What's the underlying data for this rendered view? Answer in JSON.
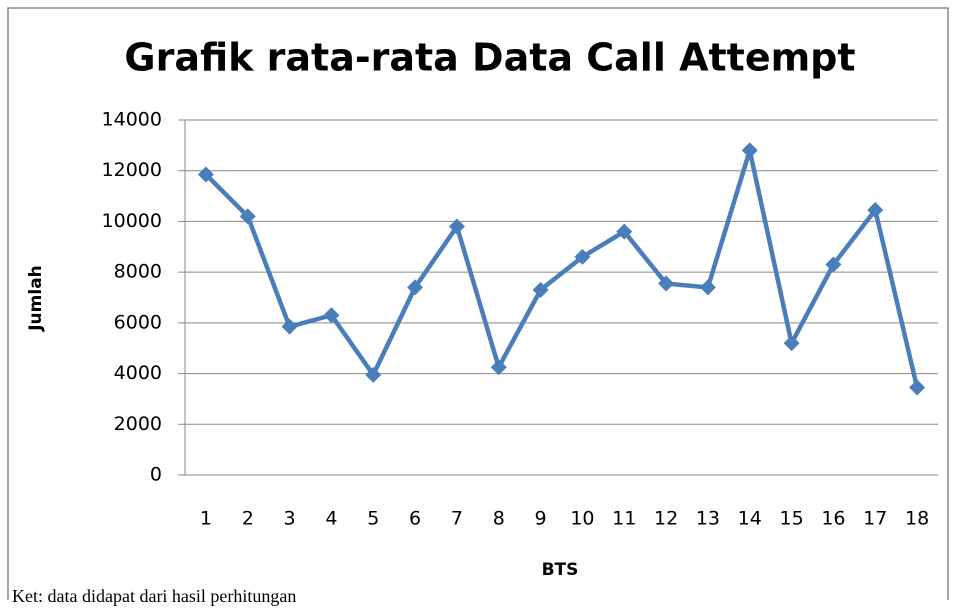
{
  "chart_data": {
    "type": "line",
    "title": "Grafik rata-rata Data Call Attempt",
    "x_label": "BTS",
    "y_label": "Jumlah",
    "categories": [
      "1",
      "2",
      "3",
      "4",
      "5",
      "6",
      "7",
      "8",
      "9",
      "10",
      "11",
      "12",
      "13",
      "14",
      "15",
      "16",
      "17",
      "18"
    ],
    "series": [
      {
        "name": "Jumlah",
        "color": "#4a7ebb",
        "values": [
          11850,
          10200,
          5850,
          6300,
          3950,
          7400,
          9800,
          4250,
          7300,
          8600,
          9600,
          7550,
          7400,
          12800,
          5200,
          8300,
          10450,
          3450
        ]
      }
    ],
    "ylim": [
      0,
      14000
    ],
    "yticks": [
      0,
      2000,
      4000,
      6000,
      8000,
      10000,
      12000,
      14000
    ],
    "grid": true,
    "legend": false,
    "note": "Ket: data didapat dari hasil perhitungan"
  }
}
